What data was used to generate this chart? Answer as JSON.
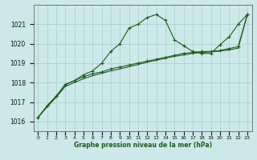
{
  "xlabel": "Graphe pression niveau de la mer (hPa)",
  "background_color": "#cce8e8",
  "line_color": "#1a5c1a",
  "grid_color": "#aacccc",
  "ylim": [
    1015.5,
    1022.0
  ],
  "xlim": [
    -0.5,
    23.5
  ],
  "yticks": [
    1016,
    1017,
    1018,
    1019,
    1020,
    1021
  ],
  "xticks": [
    0,
    1,
    2,
    3,
    4,
    5,
    6,
    7,
    8,
    9,
    10,
    11,
    12,
    13,
    14,
    15,
    16,
    17,
    18,
    19,
    20,
    21,
    22,
    23
  ],
  "series1_x": [
    0,
    1,
    2,
    3,
    4,
    5,
    6,
    7,
    8,
    9,
    10,
    11,
    12,
    13,
    14,
    15,
    16,
    17,
    18,
    19,
    20,
    21,
    22,
    23
  ],
  "series1_y": [
    1016.2,
    1016.8,
    1017.3,
    1017.9,
    1018.1,
    1018.4,
    1018.6,
    1019.0,
    1019.6,
    1020.0,
    1020.8,
    1021.0,
    1021.35,
    1021.5,
    1021.2,
    1020.2,
    1019.9,
    1019.6,
    1019.5,
    1019.5,
    1019.95,
    1020.35,
    1021.0,
    1021.5
  ],
  "series2_x": [
    0,
    1,
    2,
    3,
    4,
    5,
    6,
    7,
    8,
    9,
    10,
    11,
    12,
    13,
    14,
    15,
    16,
    17,
    18,
    19,
    20,
    21,
    22,
    23
  ],
  "series2_y": [
    1016.2,
    1016.8,
    1017.3,
    1017.9,
    1018.1,
    1018.3,
    1018.45,
    1018.55,
    1018.7,
    1018.8,
    1018.9,
    1019.0,
    1019.1,
    1019.2,
    1019.3,
    1019.4,
    1019.5,
    1019.55,
    1019.6,
    1019.6,
    1019.65,
    1019.75,
    1019.85,
    1021.5
  ],
  "series3_x": [
    0,
    1,
    2,
    3,
    4,
    5,
    6,
    7,
    8,
    9,
    10,
    11,
    12,
    13,
    14,
    15,
    16,
    17,
    18,
    19,
    20,
    21,
    22,
    23
  ],
  "series3_y": [
    1016.2,
    1016.75,
    1017.25,
    1017.8,
    1018.0,
    1018.2,
    1018.35,
    1018.48,
    1018.6,
    1018.7,
    1018.82,
    1018.93,
    1019.05,
    1019.15,
    1019.25,
    1019.35,
    1019.42,
    1019.5,
    1019.55,
    1019.58,
    1019.62,
    1019.68,
    1019.77,
    1021.5
  ]
}
